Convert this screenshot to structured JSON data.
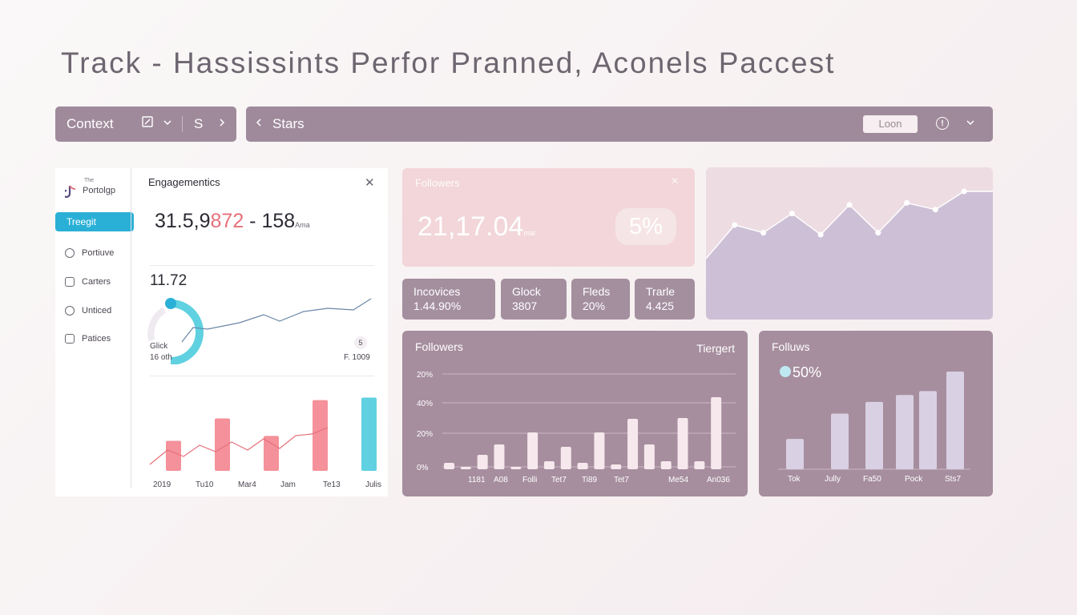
{
  "title": "Track - Hassissints Perfor Pranned, Aconels Paccest",
  "context_bar": {
    "label": "Context",
    "s_label": "S"
  },
  "stars_bar": {
    "label": "Stars",
    "login": "Loon",
    "info": "!"
  },
  "sidebar": {
    "logo_small": "The",
    "logo_text": "Portolgp",
    "active_item": "Treegit",
    "items": [
      {
        "label": "Portiuve",
        "icon": "circle-icon"
      },
      {
        "label": "Carters",
        "icon": "folder-icon"
      },
      {
        "label": "Unticed",
        "icon": "user-icon"
      },
      {
        "label": "Patices",
        "icon": "badge-icon"
      }
    ]
  },
  "engagement": {
    "title": "Engagementics",
    "big_a": "31.5,9",
    "big_b": "872",
    "big_c": " - 158",
    "big_suffix": "Ama",
    "mid_value": "11.72",
    "gauge_label": "Glick",
    "gauge_sub": "16 oth",
    "badge": "5",
    "right_note": "F. 1009",
    "x_labels": [
      "2019",
      "Tu10",
      "Mar4",
      "Jam",
      "Te13",
      "Julis"
    ],
    "bars": [
      0.36,
      0.63,
      0.42,
      0.85,
      0.88
    ]
  },
  "followers_top": {
    "label": "Followers",
    "value": "21,17.04",
    "unit": "mal",
    "percent": "5%"
  },
  "stats": [
    {
      "label": "Incovices",
      "value": "1.44.90%"
    },
    {
      "label": "Glock",
      "value": "3807"
    },
    {
      "label": "Fleds",
      "value": "20%"
    },
    {
      "label": "Trarle",
      "value": "4.425"
    }
  ],
  "followers_chart": {
    "title": "Followers",
    "target": "Tiergert",
    "y_labels": [
      "20%",
      "40%",
      "20%",
      "0%"
    ],
    "x_labels": [
      "1181",
      "A08",
      "Folli",
      "Tet7",
      "Ti89",
      "Tet7",
      "Me54",
      "An036"
    ],
    "values": [
      0.08,
      0.03,
      0.18,
      0.31,
      0.02,
      0.46,
      0.1,
      0.28,
      0.08,
      0.46,
      0.06,
      0.63,
      0.31,
      0.1,
      0.64,
      0.1,
      0.9
    ]
  },
  "follows_chart": {
    "title": "Folluws",
    "percent": "50%",
    "x_labels": [
      "Tok",
      "Jully",
      "Fa50",
      "Pock",
      "Sts7"
    ],
    "values": [
      0.31,
      0.57,
      0.69,
      0.76,
      0.8,
      1.0
    ]
  },
  "area_chart": {
    "values": [
      0.3,
      0.65,
      0.57,
      0.77,
      0.55,
      0.86,
      0.57,
      0.88,
      0.81,
      1.0,
      1.0
    ]
  },
  "colors": {
    "accent": "#2ab0d6",
    "bar_card": "#a68e9e",
    "pink_bar": "#f4919a",
    "cyan_bar": "#5fd1e0"
  }
}
